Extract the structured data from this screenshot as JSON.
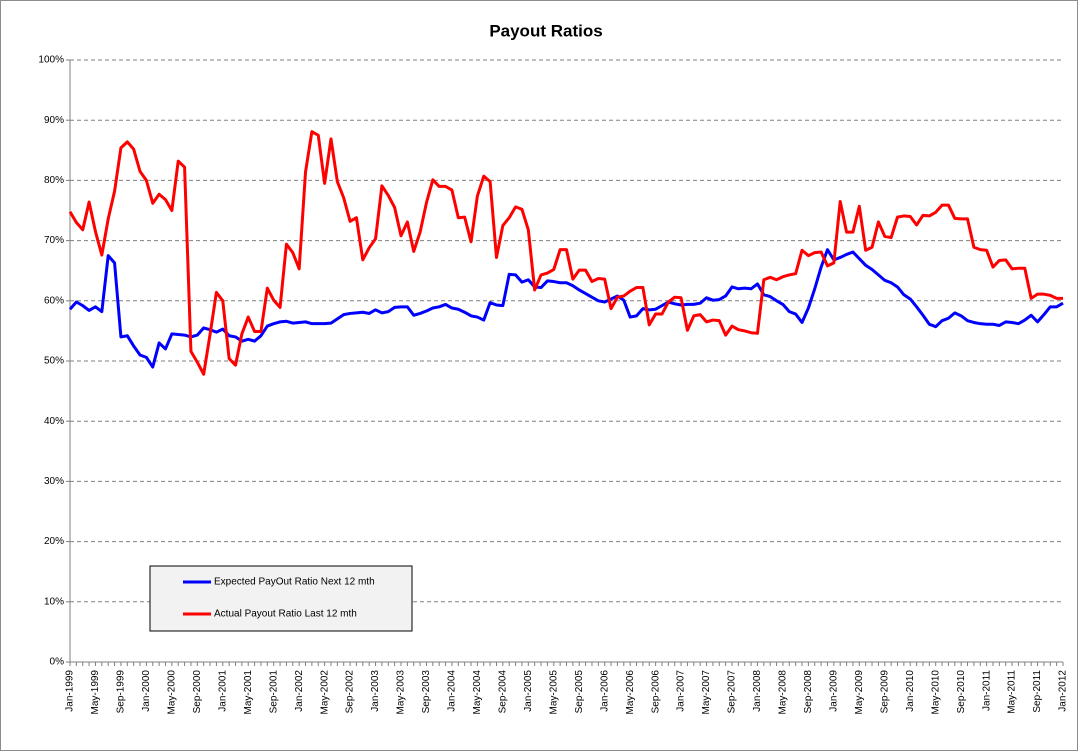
{
  "chart_data": {
    "type": "line",
    "title": "Payout Ratios",
    "categories": [
      "Jan-1999",
      null,
      null,
      null,
      "May-1999",
      null,
      null,
      null,
      "Sep-1999",
      null,
      null,
      null,
      "Jan-2000",
      null,
      null,
      null,
      "May-2000",
      null,
      null,
      null,
      "Sep-2000",
      null,
      null,
      null,
      "Jan-2001",
      null,
      null,
      null,
      "May-2001",
      null,
      null,
      null,
      "Sep-2001",
      null,
      null,
      null,
      "Jan-2002",
      null,
      null,
      null,
      "May-2002",
      null,
      null,
      null,
      "Sep-2002",
      null,
      null,
      null,
      "Jan-2003",
      null,
      null,
      null,
      "May-2003",
      null,
      null,
      null,
      "Sep-2003",
      null,
      null,
      null,
      "Jan-2004",
      null,
      null,
      null,
      "May-2004",
      null,
      null,
      null,
      "Sep-2004",
      null,
      null,
      null,
      "Jan-2005",
      null,
      null,
      null,
      "May-2005",
      null,
      null,
      null,
      "Sep-2005",
      null,
      null,
      null,
      "Jan-2006",
      null,
      null,
      null,
      "May-2006",
      null,
      null,
      null,
      "Sep-2006",
      null,
      null,
      null,
      "Jan-2007",
      null,
      null,
      null,
      "May-2007",
      null,
      null,
      null,
      "Sep-2007",
      null,
      null,
      null,
      "Jan-2008",
      null,
      null,
      null,
      "May-2008",
      null,
      null,
      null,
      "Sep-2008",
      null,
      null,
      null,
      "Jan-2009",
      null,
      null,
      null,
      "May-2009",
      null,
      null,
      null,
      "Sep-2009",
      null,
      null,
      null,
      "Jan-2010",
      null,
      null,
      null,
      "May-2010",
      null,
      null,
      null,
      "Sep-2010",
      null,
      null,
      null,
      "Jan-2011",
      null,
      null,
      null,
      "May-2011",
      null,
      null,
      null,
      "Sep-2011",
      null,
      null,
      null,
      "Jan-2012"
    ],
    "series": [
      {
        "name": "Expected PayOut Ratio  Next 12 mth",
        "color": "#0000ff",
        "values": [
          58.6,
          59.8,
          59.2,
          58.4,
          59.0,
          58.2,
          67.5,
          66.3,
          54.0,
          54.2,
          52.5,
          51.0,
          50.6,
          49.0,
          53.0,
          52.0,
          54.5,
          54.4,
          54.3,
          54.0,
          54.3,
          55.5,
          55.2,
          54.8,
          55.3,
          54.2,
          54.0,
          53.3,
          53.6,
          53.3,
          54.2,
          55.8,
          56.2,
          56.5,
          56.6,
          56.3,
          56.4,
          56.5,
          56.2,
          56.2,
          56.2,
          56.3,
          57.0,
          57.7,
          57.9,
          58.0,
          58.1,
          57.9,
          58.5,
          58.0,
          58.2,
          58.9,
          59.0,
          59.0,
          57.6,
          57.9,
          58.3,
          58.8,
          59.0,
          59.4,
          58.8,
          58.6,
          58.1,
          57.5,
          57.3,
          56.8,
          59.7,
          59.3,
          59.2,
          64.4,
          64.3,
          63.1,
          63.5,
          62.3,
          62.2,
          63.3,
          63.2,
          63.0,
          63.0,
          62.5,
          61.8,
          61.2,
          60.6,
          60.0,
          59.8,
          60.3,
          60.8,
          60.1,
          57.3,
          57.5,
          58.7,
          58.5,
          58.6,
          59.2,
          59.8,
          59.5,
          59.3,
          59.4,
          59.4,
          59.6,
          60.5,
          60.1,
          60.2,
          60.8,
          62.3,
          62.0,
          62.1,
          62.0,
          62.8,
          61.0,
          60.7,
          60.0,
          59.4,
          58.2,
          57.8,
          56.4,
          58.8,
          62.0,
          65.6,
          68.5,
          66.8,
          67.2,
          67.7,
          68.1,
          67.0,
          65.9,
          65.2,
          64.3,
          63.4,
          63.0,
          62.3,
          61.0,
          60.3,
          59.0,
          57.6,
          56.1,
          55.7,
          56.7,
          57.1,
          58.0,
          57.5,
          56.7,
          56.4,
          56.2,
          56.1,
          56.1,
          55.9,
          56.5,
          56.4,
          56.2,
          56.8,
          57.6,
          56.5,
          57.7,
          59.0,
          59.0,
          59.6
        ]
      },
      {
        "name": "Actual Payout Ratio Last 12 mth",
        "color": "#ff0000",
        "values": [
          74.8,
          73.0,
          71.8,
          76.4,
          71.5,
          67.6,
          73.6,
          78.2,
          85.4,
          86.4,
          85.2,
          81.5,
          80.0,
          76.2,
          77.7,
          76.8,
          75.0,
          83.2,
          82.2,
          51.6,
          49.8,
          47.8,
          54.4,
          61.4,
          60.0,
          50.4,
          49.3,
          54.5,
          57.3,
          54.9,
          54.9,
          62.1,
          60.1,
          58.9,
          69.4,
          68.0,
          65.3,
          81.4,
          88.1,
          87.5,
          79.5,
          86.9,
          79.8,
          77.1,
          73.2,
          73.8,
          66.8,
          68.8,
          70.3,
          79.1,
          77.5,
          75.5,
          70.8,
          73.1,
          68.2,
          71.4,
          76.3,
          80.1,
          79.0,
          79.0,
          78.4,
          73.8,
          73.9,
          69.8,
          77.4,
          80.7,
          79.8,
          67.2,
          72.5,
          73.8,
          75.6,
          75.2,
          71.8,
          61.8,
          64.3,
          64.6,
          65.2,
          68.5,
          68.5,
          63.6,
          65.1,
          65.1,
          63.2,
          63.7,
          63.6,
          58.7,
          60.6,
          60.8,
          61.6,
          62.2,
          62.2,
          56.0,
          57.8,
          57.8,
          59.8,
          60.6,
          60.5,
          55.1,
          57.5,
          57.7,
          56.5,
          56.8,
          56.7,
          54.3,
          55.8,
          55.2,
          55.0,
          54.7,
          54.6,
          63.5,
          63.9,
          63.5,
          64.0,
          64.3,
          64.5,
          68.4,
          67.5,
          68.0,
          68.1,
          65.8,
          66.3,
          76.5,
          71.4,
          71.4,
          75.7,
          68.4,
          68.9,
          73.1,
          70.7,
          70.5,
          73.9,
          74.1,
          74.0,
          72.6,
          74.2,
          74.1,
          74.7,
          75.9,
          75.9,
          73.7,
          73.6,
          73.6,
          68.9,
          68.5,
          68.4,
          65.6,
          66.7,
          66.8,
          65.3,
          65.4,
          65.4,
          60.4,
          61.1,
          61.1,
          60.9,
          60.4,
          60.4
        ]
      }
    ],
    "ylim": [
      0,
      100
    ],
    "yticks": [
      {
        "value": 0,
        "label": "0%"
      },
      {
        "value": 10,
        "label": "10%"
      },
      {
        "value": 20,
        "label": "20%"
      },
      {
        "value": 30,
        "label": "30%"
      },
      {
        "value": 40,
        "label": "40%"
      },
      {
        "value": 50,
        "label": "50%"
      },
      {
        "value": 60,
        "label": "60%"
      },
      {
        "value": 70,
        "label": "70%"
      },
      {
        "value": 80,
        "label": "80%"
      },
      {
        "value": 90,
        "label": "90%"
      },
      {
        "value": 100,
        "label": "100%"
      }
    ],
    "grid": true,
    "legend": "lower-left"
  }
}
